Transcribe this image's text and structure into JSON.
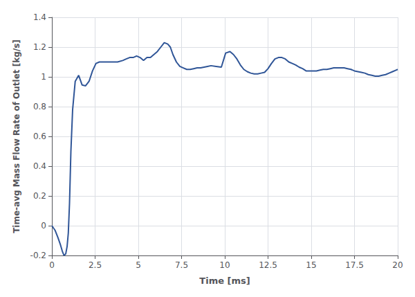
{
  "chart_data": {
    "type": "line",
    "xlabel": "Time [ms]",
    "ylabel": "Time-avg Mass Flow Rate of Outlet [kg/s]",
    "color": "#2F5597",
    "grid": true,
    "xlim": [
      0,
      20
    ],
    "ylim": [
      -0.2,
      1.4
    ],
    "xticks": [
      0,
      2.5,
      5,
      7.5,
      10,
      12.5,
      15,
      17.5,
      20
    ],
    "yticks": [
      -0.2,
      0,
      0.2,
      0.4,
      0.6,
      0.8,
      1.0,
      1.2,
      1.4
    ],
    "x": [
      0.0,
      0.18,
      0.35,
      0.5,
      0.6,
      0.7,
      0.8,
      0.88,
      0.95,
      1.02,
      1.1,
      1.2,
      1.35,
      1.55,
      1.75,
      1.95,
      2.15,
      2.35,
      2.55,
      2.75,
      2.95,
      3.2,
      3.5,
      3.8,
      4.1,
      4.3,
      4.5,
      4.7,
      4.9,
      5.1,
      5.3,
      5.5,
      5.7,
      5.9,
      6.1,
      6.3,
      6.5,
      6.7,
      6.85,
      7.0,
      7.2,
      7.4,
      7.6,
      7.8,
      8.0,
      8.2,
      8.4,
      8.6,
      8.8,
      9.0,
      9.2,
      9.5,
      9.8,
      10.05,
      10.3,
      10.5,
      10.7,
      10.9,
      11.1,
      11.3,
      11.5,
      11.7,
      11.9,
      12.1,
      12.3,
      12.5,
      12.7,
      12.9,
      13.1,
      13.3,
      13.5,
      13.7,
      13.9,
      14.1,
      14.3,
      14.5,
      14.7,
      14.9,
      15.1,
      15.3,
      15.5,
      15.7,
      15.9,
      16.1,
      16.3,
      16.5,
      16.7,
      16.9,
      17.1,
      17.3,
      17.5,
      17.7,
      17.9,
      18.1,
      18.3,
      18.5,
      18.7,
      18.9,
      19.1,
      19.3,
      19.5,
      19.7,
      19.9,
      20.0
    ],
    "y": [
      0.0,
      -0.03,
      -0.08,
      -0.13,
      -0.17,
      -0.2,
      -0.19,
      -0.14,
      -0.05,
      0.15,
      0.5,
      0.78,
      0.97,
      1.01,
      0.945,
      0.94,
      0.97,
      1.04,
      1.09,
      1.1,
      1.1,
      1.1,
      1.1,
      1.1,
      1.11,
      1.12,
      1.13,
      1.13,
      1.14,
      1.13,
      1.11,
      1.13,
      1.13,
      1.15,
      1.17,
      1.2,
      1.23,
      1.22,
      1.2,
      1.15,
      1.1,
      1.07,
      1.06,
      1.05,
      1.05,
      1.055,
      1.06,
      1.06,
      1.065,
      1.07,
      1.075,
      1.07,
      1.065,
      1.16,
      1.17,
      1.15,
      1.12,
      1.08,
      1.05,
      1.035,
      1.025,
      1.02,
      1.02,
      1.025,
      1.03,
      1.055,
      1.09,
      1.12,
      1.13,
      1.13,
      1.12,
      1.1,
      1.09,
      1.08,
      1.065,
      1.055,
      1.04,
      1.04,
      1.04,
      1.04,
      1.045,
      1.05,
      1.05,
      1.055,
      1.06,
      1.06,
      1.06,
      1.06,
      1.055,
      1.05,
      1.04,
      1.035,
      1.03,
      1.025,
      1.015,
      1.01,
      1.005,
      1.005,
      1.01,
      1.015,
      1.025,
      1.035,
      1.045,
      1.05
    ]
  }
}
